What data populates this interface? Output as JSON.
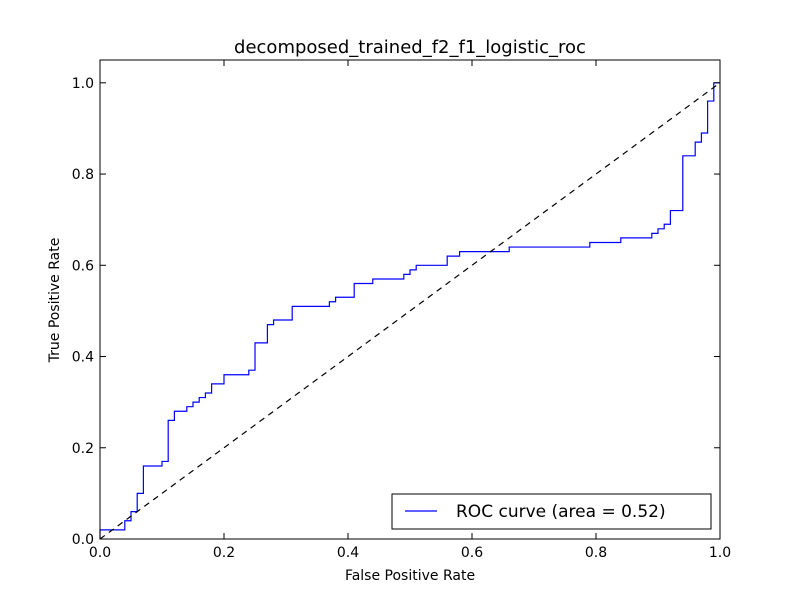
{
  "chart_data": {
    "type": "line",
    "title": "decomposed_trained_f2_f1_logistic_roc",
    "xlabel": "False Positive Rate",
    "ylabel": "True Positive Rate",
    "xlim": [
      0.0,
      1.0
    ],
    "ylim": [
      0.0,
      1.05
    ],
    "xticks": [
      "0.0",
      "0.2",
      "0.4",
      "0.6",
      "0.8",
      "1.0"
    ],
    "yticks": [
      "0.0",
      "0.2",
      "0.4",
      "0.6",
      "0.8",
      "1.0"
    ],
    "grid": false,
    "legend_position": "lower-right",
    "series": [
      {
        "name": "ROC curve (area = 0.52)",
        "color": "#0000ff",
        "style": "step",
        "x": [
          0.0,
          0.0,
          0.04,
          0.04,
          0.05,
          0.05,
          0.06,
          0.06,
          0.07,
          0.07,
          0.1,
          0.1,
          0.11,
          0.11,
          0.12,
          0.12,
          0.14,
          0.14,
          0.15,
          0.15,
          0.16,
          0.16,
          0.17,
          0.17,
          0.18,
          0.18,
          0.2,
          0.2,
          0.24,
          0.24,
          0.25,
          0.25,
          0.27,
          0.27,
          0.28,
          0.28,
          0.31,
          0.31,
          0.37,
          0.37,
          0.38,
          0.38,
          0.41,
          0.41,
          0.44,
          0.44,
          0.49,
          0.49,
          0.5,
          0.5,
          0.51,
          0.51,
          0.56,
          0.56,
          0.58,
          0.58,
          0.66,
          0.66,
          0.79,
          0.79,
          0.84,
          0.84,
          0.89,
          0.89,
          0.9,
          0.9,
          0.91,
          0.91,
          0.92,
          0.92,
          0.94,
          0.94,
          0.96,
          0.96,
          0.97,
          0.97,
          0.98,
          0.98,
          0.99,
          0.99,
          1.0
        ],
        "y": [
          0.0,
          0.02,
          0.02,
          0.04,
          0.04,
          0.06,
          0.06,
          0.1,
          0.1,
          0.16,
          0.16,
          0.17,
          0.17,
          0.26,
          0.26,
          0.28,
          0.28,
          0.29,
          0.29,
          0.3,
          0.3,
          0.31,
          0.31,
          0.32,
          0.32,
          0.34,
          0.34,
          0.36,
          0.36,
          0.37,
          0.37,
          0.43,
          0.43,
          0.47,
          0.47,
          0.48,
          0.48,
          0.51,
          0.51,
          0.52,
          0.52,
          0.53,
          0.53,
          0.56,
          0.56,
          0.57,
          0.57,
          0.58,
          0.58,
          0.59,
          0.59,
          0.6,
          0.6,
          0.62,
          0.62,
          0.63,
          0.63,
          0.64,
          0.64,
          0.65,
          0.65,
          0.66,
          0.66,
          0.67,
          0.67,
          0.68,
          0.68,
          0.69,
          0.69,
          0.72,
          0.72,
          0.84,
          0.84,
          0.87,
          0.87,
          0.89,
          0.89,
          0.96,
          0.96,
          1.0,
          1.0
        ]
      },
      {
        "name": "",
        "color": "#000000",
        "style": "dashed",
        "x": [
          0.0,
          1.0
        ],
        "y": [
          0.0,
          1.0
        ]
      }
    ]
  }
}
